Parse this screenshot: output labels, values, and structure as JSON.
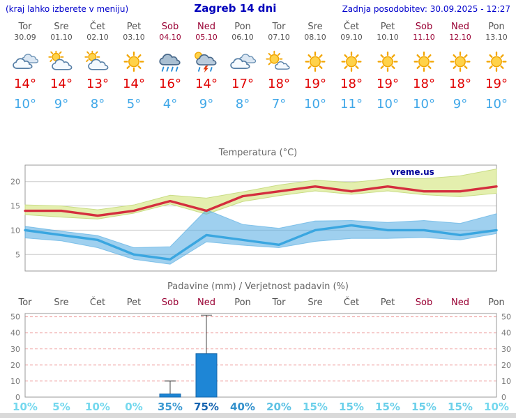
{
  "header": {
    "left_note": "(kraj lahko izberete v meniju)",
    "title": "Zagreb 14 dni",
    "updated": "Zadnja posodobitev: 30.09.2025 - 12:27"
  },
  "watermark": "vreme.us",
  "days": [
    {
      "name": "Tor",
      "date": "30.09",
      "weekend": false,
      "icon": "cloudy",
      "tmax_label": "14°",
      "tmin_label": "10°",
      "prob": "10%",
      "prob_color": "#74d8ee"
    },
    {
      "name": "Sre",
      "date": "01.10",
      "weekend": false,
      "icon": "partly",
      "tmax_label": "14°",
      "tmin_label": "9°",
      "prob": "5%",
      "prob_color": "#74d8ee"
    },
    {
      "name": "Čet",
      "date": "02.10",
      "weekend": false,
      "icon": "partly",
      "tmax_label": "13°",
      "tmin_label": "8°",
      "prob": "10%",
      "prob_color": "#74d8ee"
    },
    {
      "name": "Pet",
      "date": "03.10",
      "weekend": false,
      "icon": "sunny",
      "tmax_label": "14°",
      "tmin_label": "5°",
      "prob": "0%",
      "prob_color": "#74d8ee"
    },
    {
      "name": "Sob",
      "date": "04.10",
      "weekend": true,
      "icon": "rain",
      "tmax_label": "16°",
      "tmin_label": "4°",
      "prob": "35%",
      "prob_color": "#3d9ad2"
    },
    {
      "name": "Ned",
      "date": "05.10",
      "weekend": true,
      "icon": "storm",
      "tmax_label": "14°",
      "tmin_label": "9°",
      "prob": "75%",
      "prob_color": "#1664b0"
    },
    {
      "name": "Pon",
      "date": "06.10",
      "weekend": false,
      "icon": "cloudy",
      "tmax_label": "17°",
      "tmin_label": "8°",
      "prob": "40%",
      "prob_color": "#3391cc"
    },
    {
      "name": "Tor",
      "date": "07.10",
      "weekend": false,
      "icon": "mostly-sunny",
      "tmax_label": "18°",
      "tmin_label": "7°",
      "prob": "20%",
      "prob_color": "#5ec2e4"
    },
    {
      "name": "Sre",
      "date": "08.10",
      "weekend": false,
      "icon": "sunny",
      "tmax_label": "19°",
      "tmin_label": "10°",
      "prob": "15%",
      "prob_color": "#6cd0ea"
    },
    {
      "name": "Čet",
      "date": "09.10",
      "weekend": false,
      "icon": "sunny",
      "tmax_label": "18°",
      "tmin_label": "11°",
      "prob": "15%",
      "prob_color": "#6cd0ea"
    },
    {
      "name": "Pet",
      "date": "10.10",
      "weekend": false,
      "icon": "sunny",
      "tmax_label": "19°",
      "tmin_label": "10°",
      "prob": "15%",
      "prob_color": "#6cd0ea"
    },
    {
      "name": "Sob",
      "date": "11.10",
      "weekend": true,
      "icon": "sunny",
      "tmax_label": "18°",
      "tmin_label": "10°",
      "prob": "15%",
      "prob_color": "#6cd0ea"
    },
    {
      "name": "Ned",
      "date": "12.10",
      "weekend": true,
      "icon": "sunny",
      "tmax_label": "18°",
      "tmin_label": "9°",
      "prob": "15%",
      "prob_color": "#6cd0ea"
    },
    {
      "name": "Pon",
      "date": "13.10",
      "weekend": false,
      "icon": "sunny",
      "tmax_label": "19°",
      "tmin_label": "10°",
      "prob": "10%",
      "prob_color": "#74d8ee"
    }
  ],
  "chart_data": [
    {
      "type": "line",
      "title": "Temperatura (°C)",
      "categories": [
        "Tor",
        "Sre",
        "Čet",
        "Pet",
        "Sob",
        "Ned",
        "Pon",
        "Tor",
        "Sre",
        "Čet",
        "Pet",
        "Sob",
        "Ned",
        "Pon"
      ],
      "yticks": [
        5,
        10,
        15,
        20
      ],
      "ylim": [
        1.6,
        23.4
      ],
      "grid": true,
      "band_colors": {
        "max": "#e4efae",
        "min": "rgba(80,170,225,0.55)"
      },
      "series": [
        {
          "name": "max-temp",
          "color": "#d42e3e",
          "values": [
            14,
            14,
            13,
            14,
            16,
            14,
            17,
            18,
            19,
            18,
            19,
            18,
            18,
            19
          ]
        },
        {
          "name": "max-temp-range-upper",
          "values": [
            15.2,
            15,
            14.2,
            15.2,
            17.2,
            16.6,
            17.9,
            19.3,
            20.3,
            19.8,
            20.6,
            20.6,
            21.2,
            22.6
          ]
        },
        {
          "name": "max-temp-range-lower",
          "values": [
            13.2,
            12.7,
            12.3,
            13.5,
            15.4,
            13.3,
            15.9,
            17.1,
            18.1,
            17.4,
            18.1,
            17.3,
            16.9,
            17.6
          ]
        },
        {
          "name": "min-temp",
          "color": "#3aa6e0",
          "values": [
            10,
            9,
            8,
            5,
            4,
            9,
            8,
            7,
            10,
            11,
            10,
            10,
            9,
            10
          ]
        },
        {
          "name": "min-temp-range-upper",
          "values": [
            10.8,
            9.8,
            8.9,
            6.4,
            6.6,
            14.2,
            11.2,
            10.4,
            11.9,
            12,
            11.6,
            12,
            11.4,
            13.4
          ]
        },
        {
          "name": "min-temp-range-lower",
          "values": [
            8.4,
            7.8,
            6.4,
            4,
            3,
            7.6,
            6.9,
            6.4,
            7.7,
            8.3,
            8.3,
            8.5,
            8,
            9.3
          ]
        }
      ]
    },
    {
      "type": "bar",
      "title": "Padavine (mm) / Verjetnost padavin (%)",
      "categories": [
        "Tor",
        "Sre",
        "Čet",
        "Pet",
        "Sob",
        "Ned",
        "Pon",
        "Tor",
        "Sre",
        "Čet",
        "Pet",
        "Sob",
        "Ned",
        "Pon"
      ],
      "values": [
        0,
        0,
        0,
        0,
        2,
        27,
        0,
        0,
        0,
        0,
        0,
        0,
        0,
        0
      ],
      "whisker_values": [
        0,
        0,
        0,
        0,
        10,
        51,
        0,
        0,
        0,
        0,
        0,
        0,
        0,
        0
      ],
      "probabilities": [
        "10%",
        "5%",
        "10%",
        "0%",
        "35%",
        "75%",
        "40%",
        "20%",
        "15%",
        "15%",
        "15%",
        "15%",
        "15%",
        "10%"
      ],
      "yticks": [
        0,
        10,
        20,
        30,
        40,
        50
      ],
      "ylim": [
        0,
        52
      ],
      "bar_color": "#1e86d6",
      "grid": true
    }
  ]
}
